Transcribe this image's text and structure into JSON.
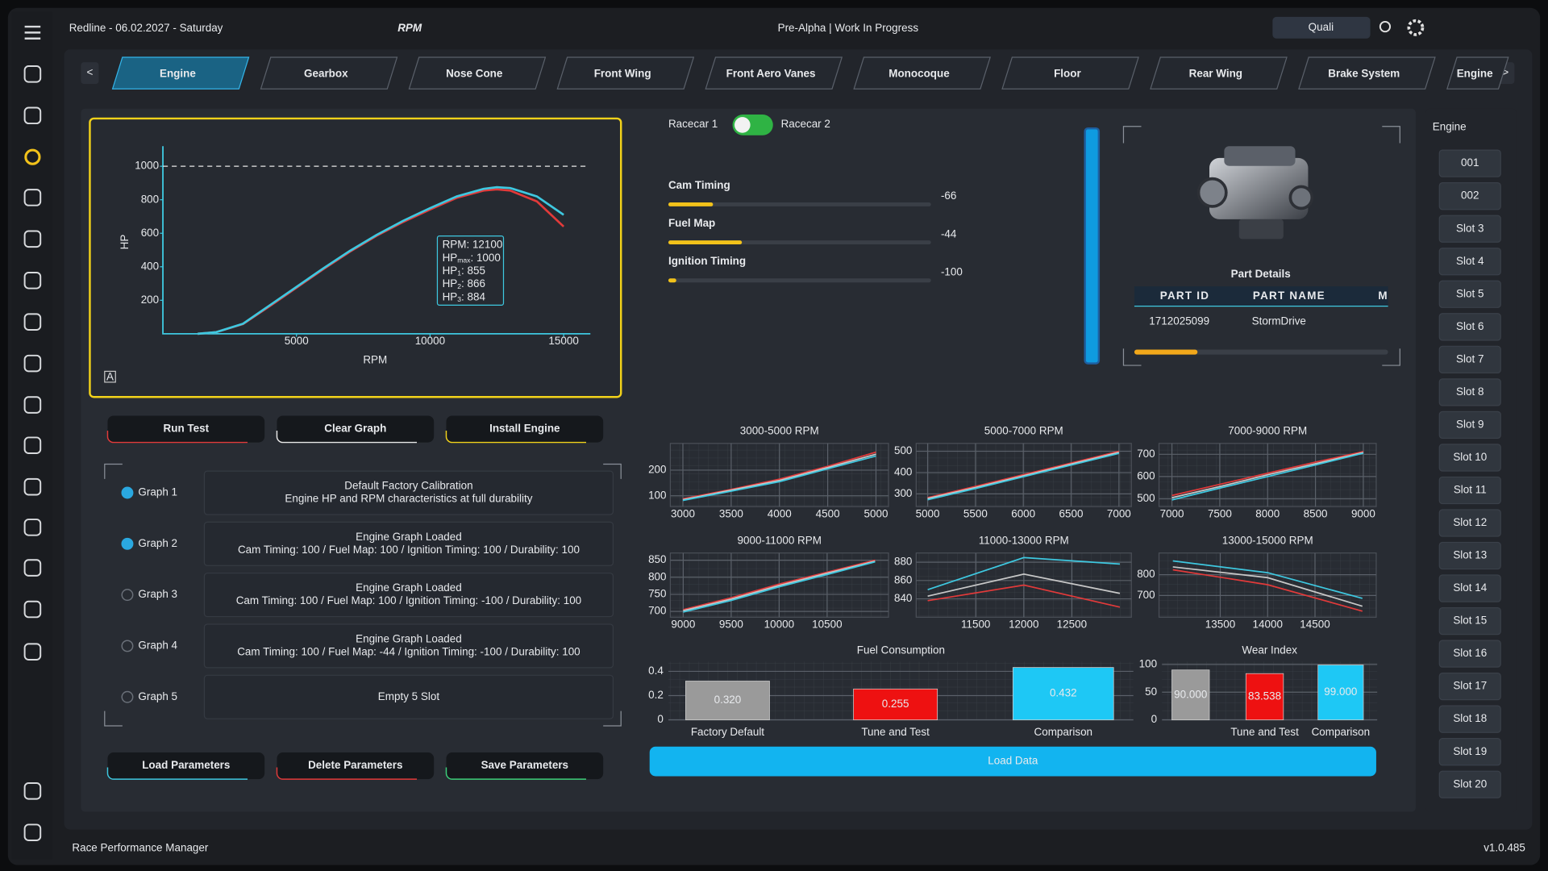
{
  "header": {
    "title": "Redline - 06.02.2027 - Saturday",
    "logo": "RPM",
    "status": "Pre-Alpha | Work In Progress",
    "session": "Quali"
  },
  "tabs": {
    "prev": "<",
    "next": ">",
    "active": 0,
    "items": [
      "Engine",
      "Gearbox",
      "Nose Cone",
      "Front Wing",
      "Front Aero Vanes",
      "Monocoque",
      "Floor",
      "Rear Wing",
      "Brake System",
      "Engine"
    ]
  },
  "engine_graph": {
    "type": "line",
    "x_label": "RPM",
    "y_label": "HP",
    "corner_label": "A",
    "xlim": [
      0,
      16000
    ],
    "ylim": [
      0,
      1120
    ],
    "xticks": [
      5000,
      10000,
      15000
    ],
    "yticks": [
      200,
      400,
      600,
      800,
      1000
    ],
    "reference_line": 1000,
    "x": [
      1300,
      2000,
      3000,
      4000,
      5000,
      6000,
      7000,
      8000,
      9000,
      10000,
      11000,
      12000,
      12500,
      13000,
      14000,
      15000
    ],
    "series": [
      {
        "color": "#e23a3a",
        "values": [
          0,
          10,
          58,
          165,
          275,
          385,
          490,
          585,
          668,
          742,
          812,
          855,
          862,
          855,
          790,
          640
        ]
      },
      {
        "color": "#3ec8e0",
        "values": [
          0,
          10,
          60,
          170,
          280,
          390,
          495,
          590,
          675,
          750,
          820,
          865,
          875,
          870,
          820,
          710
        ]
      }
    ],
    "tooltip": [
      {
        "label": "RPM",
        "value": 12100
      },
      {
        "label": "HP",
        "sub": "max",
        "value": 1000
      },
      {
        "label": "HP",
        "sub": "1",
        "value": 855
      },
      {
        "label": "HP",
        "sub": "2",
        "value": 866
      },
      {
        "label": "HP",
        "sub": "3",
        "value": 884
      }
    ]
  },
  "controls": {
    "toggle": {
      "left": "Racecar 1",
      "right": "Racecar 2",
      "on": true
    },
    "lim": [
      -100,
      100
    ],
    "sliders": [
      {
        "name": "Cam Timing",
        "value": -66
      },
      {
        "name": "Fuel Map",
        "value": -44
      },
      {
        "name": "Ignition Timing",
        "value": -100
      }
    ]
  },
  "part_details": {
    "title": "Part Details",
    "columns": [
      "PART ID",
      "PART NAME",
      "MA"
    ],
    "rows": [
      [
        "1712025099",
        "StormDrive"
      ]
    ]
  },
  "buttons": {
    "top": [
      "Run Test",
      "Clear Graph",
      "Install Engine"
    ],
    "bottom": [
      "Load Parameters",
      "Delete Parameters",
      "Save Parameters"
    ],
    "load_data": "Load Data"
  },
  "graphs": [
    {
      "label": "Graph 1",
      "selected": true,
      "color": "#a9b0b8",
      "lines": [
        "Default Factory Calibration",
        "Engine HP and RPM characteristics at full durability"
      ]
    },
    {
      "label": "Graph 2",
      "selected": true,
      "color": "#38b8e8",
      "lines": [
        "Engine Graph Loaded",
        "Cam Timing: 100 / Fuel Map: 100 / Ignition Timing: 100 / Durability: 100"
      ]
    },
    {
      "label": "Graph 3",
      "selected": false,
      "color": "#3ccf7a",
      "lines": [
        "Engine Graph Loaded",
        "Cam Timing: 100 / Fuel Map: 100 / Ignition Timing: -100 / Durability: 100"
      ]
    },
    {
      "label": "Graph 4",
      "selected": false,
      "color": "#f0a830",
      "lines": [
        "Engine Graph Loaded",
        "Cam Timing: 100 / Fuel Map: -44 / Ignition Timing: -100 / Durability: 100"
      ]
    },
    {
      "label": "Graph 5",
      "selected": false,
      "color": "#c060d0",
      "lines": [
        "Empty 5 Slot"
      ]
    }
  ],
  "rpm_charts": [
    {
      "type": "line",
      "title": "3000-5000 RPM",
      "x": [
        3000,
        3500,
        4000,
        4500,
        5000
      ],
      "xlim": [
        2870,
        5130
      ],
      "ylim": [
        58,
        304
      ],
      "xticks": [
        3000,
        3500,
        4000,
        4500,
        5000
      ],
      "yticks": [
        100,
        200
      ],
      "series": [
        {
          "color": "#e23a3a",
          "values": [
            88,
            125,
            165,
            215,
            270
          ]
        },
        {
          "color": "#c8c8c8",
          "values": [
            85,
            122,
            160,
            210,
            262
          ]
        },
        {
          "color": "#3ec8e0",
          "values": [
            82,
            118,
            155,
            205,
            255
          ]
        }
      ]
    },
    {
      "type": "line",
      "title": "5000-7000 RPM",
      "x": [
        5000,
        5500,
        6000,
        6500,
        7000
      ],
      "xlim": [
        4880,
        7130
      ],
      "ylim": [
        240,
        537
      ],
      "xticks": [
        5000,
        5500,
        6000,
        6500,
        7000
      ],
      "yticks": [
        300,
        400,
        500
      ],
      "series": [
        {
          "color": "#e23a3a",
          "values": [
            282,
            335,
            390,
            445,
            500
          ]
        },
        {
          "color": "#c8c8c8",
          "values": [
            278,
            330,
            385,
            440,
            495
          ]
        },
        {
          "color": "#3ec8e0",
          "values": [
            272,
            325,
            380,
            435,
            490
          ]
        }
      ]
    },
    {
      "type": "line",
      "title": "7000-9000 RPM",
      "x": [
        7000,
        7500,
        8000,
        8500,
        9000
      ],
      "xlim": [
        6865,
        9135
      ],
      "ylim": [
        465,
        749
      ],
      "xticks": [
        7000,
        7500,
        8000,
        8500,
        9000
      ],
      "yticks": [
        500,
        600,
        700
      ],
      "series": [
        {
          "color": "#e23a3a",
          "values": [
            515,
            565,
            615,
            665,
            712
          ]
        },
        {
          "color": "#c8c8c8",
          "values": [
            505,
            555,
            608,
            658,
            708
          ]
        },
        {
          "color": "#3ec8e0",
          "values": [
            495,
            548,
            600,
            652,
            705
          ]
        }
      ]
    },
    {
      "type": "line",
      "title": "9000-11000 RPM",
      "x": [
        9000,
        9500,
        10000,
        10500,
        11000
      ],
      "xlim": [
        8866,
        11140
      ],
      "ylim": [
        683,
        871
      ],
      "xticks": [
        9000,
        9500,
        10000,
        10500
      ],
      "yticks": [
        700,
        750,
        800,
        850
      ],
      "series": [
        {
          "color": "#e23a3a",
          "values": [
            705,
            740,
            780,
            815,
            850
          ]
        },
        {
          "color": "#c8c8c8",
          "values": [
            702,
            736,
            776,
            812,
            847
          ]
        },
        {
          "color": "#3ec8e0",
          "values": [
            698,
            732,
            772,
            808,
            845
          ]
        }
      ]
    },
    {
      "type": "line",
      "title": "11000-13000 RPM",
      "x": [
        11000,
        12000,
        13000
      ],
      "xlim": [
        10880,
        13120
      ],
      "ylim": [
        820,
        890
      ],
      "xticks": [
        11500,
        12000,
        12500
      ],
      "yticks": [
        840,
        860,
        880
      ],
      "series": [
        {
          "color": "#e23a3a",
          "values": [
            838,
            855,
            831
          ]
        },
        {
          "color": "#c8c8c8",
          "values": [
            843,
            867,
            846
          ]
        },
        {
          "color": "#3ec8e0",
          "values": [
            850,
            885,
            878
          ]
        }
      ]
    },
    {
      "type": "line",
      "title": "13000-15000 RPM",
      "x": [
        13000,
        14000,
        15000
      ],
      "xlim": [
        12854,
        15146
      ],
      "ylim": [
        595,
        905
      ],
      "xticks": [
        13500,
        14000,
        14500
      ],
      "yticks": [
        700,
        800
      ],
      "series": [
        {
          "color": "#e23a3a",
          "values": [
            824,
            752,
            624
          ]
        },
        {
          "color": "#c8c8c8",
          "values": [
            838,
            786,
            648
          ]
        },
        {
          "color": "#3ec8e0",
          "values": [
            867,
            810,
            686
          ]
        }
      ]
    }
  ],
  "bar_charts": [
    {
      "type": "bar",
      "title": "Fuel Consumption",
      "categories": [
        "Factory Default",
        "Tune and Test",
        "Comparison"
      ],
      "values": [
        0.32,
        0.255,
        0.432
      ],
      "value_labels": [
        "0.320",
        "0.255",
        "0.432"
      ],
      "colors": [
        "#9a9a9a",
        "#ee1111",
        "#1ec8f5"
      ],
      "ylim": [
        0,
        0.48
      ],
      "yticks": [
        0,
        0.2,
        0.4
      ]
    },
    {
      "type": "bar",
      "title": "Wear Index",
      "categories": [
        null,
        "Tune and Test",
        "Comparison"
      ],
      "values": [
        90,
        83.538,
        99
      ],
      "value_labels": [
        "90.000",
        "83.538",
        "99.000"
      ],
      "colors": [
        "#9a9a9a",
        "#ee1111",
        "#1ec8f5"
      ],
      "ylim": [
        0,
        105
      ],
      "yticks": [
        0,
        50,
        100
      ]
    }
  ],
  "slots": {
    "title": "Engine",
    "items": [
      "001",
      "002",
      "Slot 3",
      "Slot 4",
      "Slot 5",
      "Slot 6",
      "Slot 7",
      "Slot 8",
      "Slot 9",
      "Slot 10",
      "Slot 11",
      "Slot 12",
      "Slot 13",
      "Slot 14",
      "Slot 15",
      "Slot 16",
      "Slot 17",
      "Slot 18",
      "Slot 19",
      "Slot 20"
    ]
  },
  "footer": {
    "app": "Race Performance Manager",
    "version": "v1.0.485"
  }
}
